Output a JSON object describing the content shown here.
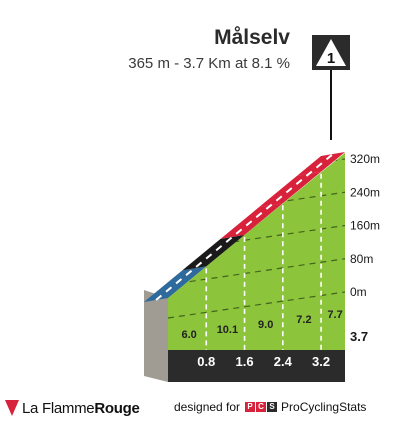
{
  "header": {
    "climb_name": "Målselv",
    "climb_summary": "365 m - 3.7 Km at 8.1 %",
    "climb_number": "1"
  },
  "colors": {
    "profile_green": "#8cc43c",
    "profile_side": "#a09b93",
    "base_band": "#2b2b2b",
    "top_blue": "#2e6a9c",
    "top_black": "#1a1a1a",
    "top_red": "#d8213a",
    "icon_bg": "#2b2b2b"
  },
  "chart_data": {
    "type": "area",
    "title": "Målselv",
    "subtitle": "365 m - 3.7 Km at 8.1 %",
    "x_unit": "km",
    "y_unit": "m",
    "x_range": [
      0,
      3.7
    ],
    "y_range": [
      0,
      320
    ],
    "y_ticks": [
      "0m",
      "80m",
      "160m",
      "240m",
      "320m"
    ],
    "y_tick_values": [
      0,
      80,
      160,
      240,
      320
    ],
    "end_distance_label": "3.7",
    "segments": [
      {
        "from_km": 0.0,
        "to_km": 0.8,
        "gradient": "6.0",
        "km_label": "0.8",
        "color_class": "blue"
      },
      {
        "from_km": 0.8,
        "to_km": 1.6,
        "gradient": "10.1",
        "km_label": "1.6",
        "color_class": "black"
      },
      {
        "from_km": 1.6,
        "to_km": 2.4,
        "gradient": "9.0",
        "km_label": "2.4",
        "color_class": "red"
      },
      {
        "from_km": 2.4,
        "to_km": 3.2,
        "gradient": "7.2",
        "km_label": "3.2",
        "color_class": "red"
      },
      {
        "from_km": 3.2,
        "to_km": 3.7,
        "gradient": "7.7",
        "km_label": "",
        "color_class": "red"
      }
    ],
    "grid": true
  },
  "footer": {
    "brand_prefix": "La Flamme",
    "brand_suffix": "Rouge",
    "designed_for": "designed for",
    "pcs_letters": [
      "P",
      "C",
      "S"
    ],
    "pcs_name": "ProCyclingStats"
  }
}
